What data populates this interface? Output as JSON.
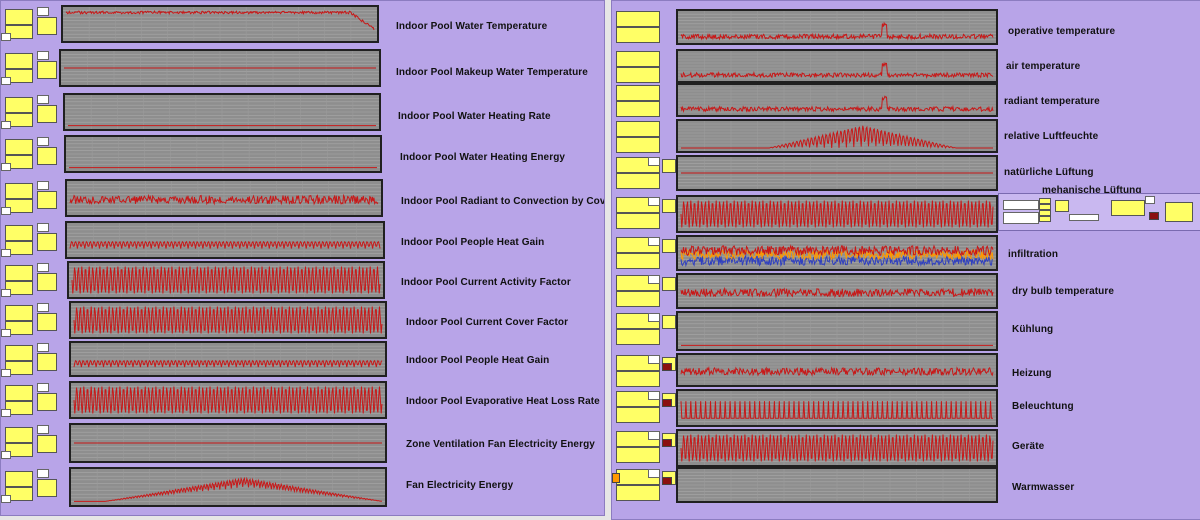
{
  "left_panel": {
    "rows": [
      {
        "label": "Indoor Pool Water Temperature",
        "pattern": "noisy-top",
        "color": "#c81818"
      },
      {
        "label": "Indoor Pool Makeup Water Temperature",
        "pattern": "flat",
        "color": "#c81818"
      },
      {
        "label": "Indoor Pool Water Heating Rate",
        "pattern": "flat-low",
        "color": "#c81818"
      },
      {
        "label": "Indoor Pool Water Heating Energy",
        "pattern": "flat-low",
        "color": "#c81818"
      },
      {
        "label": "Indoor Pool Radiant to Convection by Cover",
        "pattern": "noisy-mid",
        "color": "#c81818"
      },
      {
        "label": "Indoor Pool People Heat Gain",
        "pattern": "wave-small",
        "color": "#c81818"
      },
      {
        "label": "Indoor Pool Current Activity Factor",
        "pattern": "wave-full",
        "color": "#c81818"
      },
      {
        "label": "Indoor Pool Current Cover Factor",
        "pattern": "wave-full",
        "color": "#c81818"
      },
      {
        "label": "Indoor Pool People Heat Gain",
        "pattern": "wave-small",
        "color": "#c81818"
      },
      {
        "label": "Indoor Pool Evaporative Heat Loss Rate",
        "pattern": "wave-full",
        "color": "#c81818"
      },
      {
        "label": "Zone Ventilation Fan Electricity Energy",
        "pattern": "flat",
        "color": "#c81818"
      },
      {
        "label": "Fan Electricity Energy",
        "pattern": "hump",
        "color": "#c81818"
      }
    ]
  },
  "right_panel": {
    "rows": [
      {
        "label": "operative temperature",
        "pattern": "noisy-low",
        "color": "#c81818"
      },
      {
        "label": "air temperature",
        "pattern": "noisy-low",
        "color": "#c81818"
      },
      {
        "label": "radiant temperature",
        "pattern": "noisy-low",
        "color": "#c81818"
      },
      {
        "label": "relative Luftfeuchte",
        "pattern": "spikes",
        "color": "#c81818"
      },
      {
        "label": "natürliche Lüftung",
        "pattern": "flat",
        "color": "#c81818"
      },
      {
        "label": "mehanische Lüftung",
        "pattern": "wave-full",
        "color": "#c81818"
      },
      {
        "label": "infiltration",
        "pattern": "multi",
        "color": "#c81818"
      },
      {
        "label": "dry bulb temperature",
        "pattern": "noisy-mid",
        "color": "#c81818"
      },
      {
        "label": "Kühlung",
        "pattern": "flat-low",
        "color": "#c81818"
      },
      {
        "label": "Heizung",
        "pattern": "noisy-mid",
        "color": "#c81818"
      },
      {
        "label": "Beleuchtung",
        "pattern": "comb",
        "color": "#c81818"
      },
      {
        "label": "Geräte",
        "pattern": "wave-full",
        "color": "#c81818"
      },
      {
        "label": "Warmwasser",
        "pattern": "empty",
        "color": "#c81818"
      }
    ]
  },
  "colors": {
    "canvas": "#b8a4e8",
    "node": "#ffff66",
    "chart_bg": "#8e8e8e",
    "series": "#c81818",
    "series_alt1": "#ff9900",
    "series_alt2": "#3040c0"
  }
}
